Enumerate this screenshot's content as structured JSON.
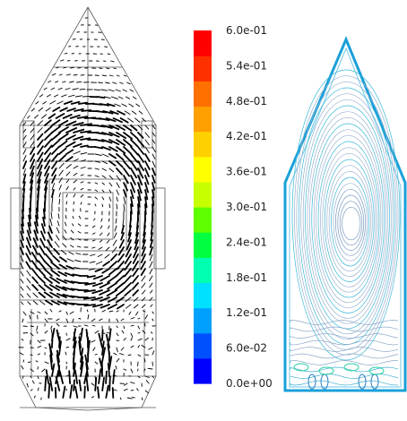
{
  "chart_data": {
    "type": "heatmap",
    "panels": [
      {
        "name": "velocity-vectors",
        "kind": "vector-field",
        "color": "#000000"
      },
      {
        "name": "contour-lines",
        "kind": "contour",
        "levels": 24
      }
    ],
    "colorbar": {
      "min": 0.0,
      "max": 0.6,
      "ticks": [
        {
          "value": 0.6,
          "label": "6.0e-01"
        },
        {
          "value": 0.54,
          "label": "5.4e-01"
        },
        {
          "value": 0.48,
          "label": "4.8e-01"
        },
        {
          "value": 0.42,
          "label": "4.2e-01"
        },
        {
          "value": 0.36,
          "label": "3.6e-01"
        },
        {
          "value": 0.3,
          "label": "3.0e-01"
        },
        {
          "value": 0.24,
          "label": "2.4e-01"
        },
        {
          "value": 0.18,
          "label": "1.8e-01"
        },
        {
          "value": 0.12,
          "label": "1.2e-01"
        },
        {
          "value": 0.06,
          "label": "6.0e-02"
        },
        {
          "value": 0.0,
          "label": "0.0e+00"
        }
      ],
      "colors": [
        "#0000ff",
        "#0050ff",
        "#00a0ff",
        "#00e0ff",
        "#00ffb0",
        "#00ff40",
        "#60ff00",
        "#c8ff00",
        "#ffff00",
        "#ffd000",
        "#ffa000",
        "#ff7000",
        "#ff3000",
        "#ff0000"
      ]
    }
  }
}
